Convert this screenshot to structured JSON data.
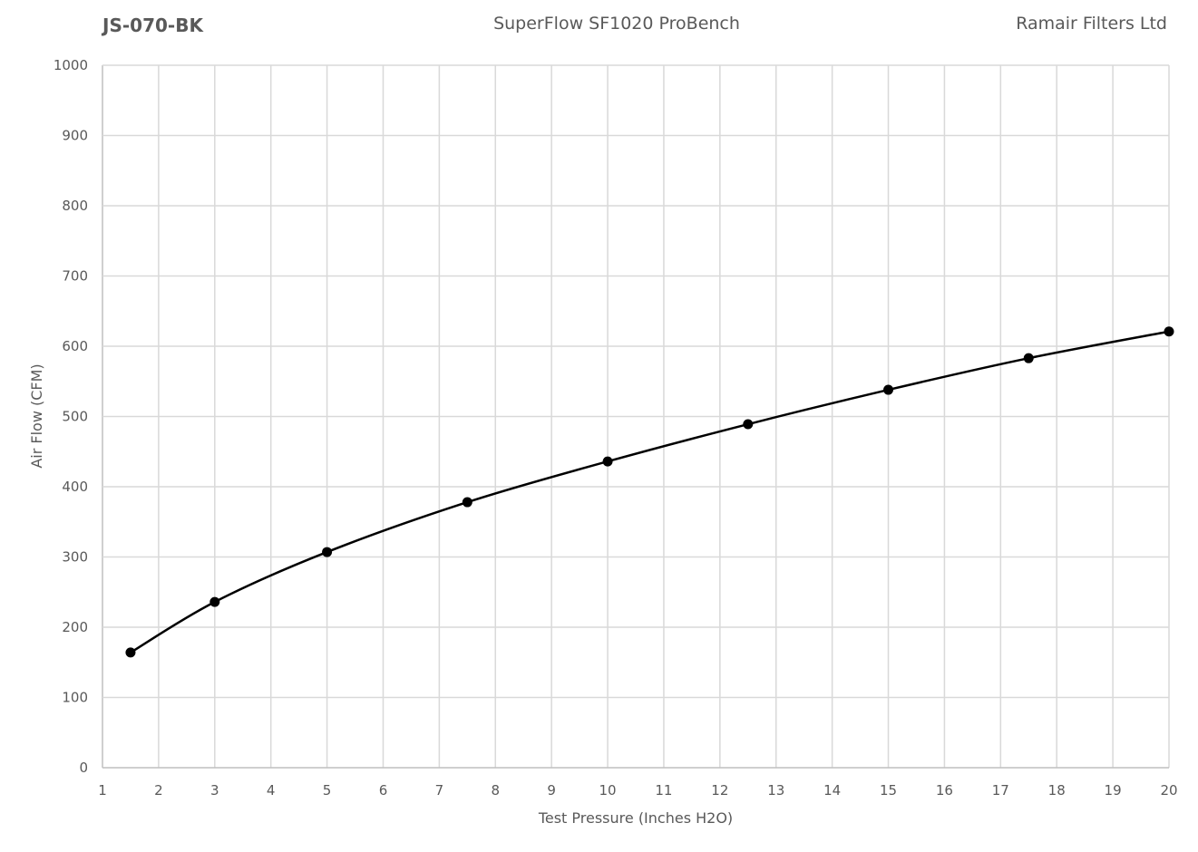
{
  "header": {
    "left": "JS-070-BK",
    "center": "SuperFlow SF1020 ProBench",
    "right": "Ramair Filters Ltd"
  },
  "chart_data": {
    "type": "line",
    "title": "SuperFlow SF1020 ProBench",
    "xlabel": "Test Pressure (Inches H2O)",
    "ylabel": "Air Flow (CFM)",
    "xlim": [
      1,
      20
    ],
    "ylim": [
      0,
      1000
    ],
    "xticks": [
      1,
      2,
      3,
      4,
      5,
      6,
      7,
      8,
      9,
      10,
      11,
      12,
      13,
      14,
      15,
      16,
      17,
      18,
      19,
      20
    ],
    "yticks": [
      0,
      100,
      200,
      300,
      400,
      500,
      600,
      700,
      800,
      900,
      1000
    ],
    "grid": true,
    "smooth": true,
    "markers": true,
    "line_color": "#000000",
    "grid_color": "#d9d9d9",
    "series": [
      {
        "x": [
          1.5,
          3,
          5,
          7.5,
          10,
          12.5,
          15,
          17.5,
          20
        ],
        "y": [
          164,
          236,
          307,
          378,
          436,
          489,
          538,
          583,
          621
        ]
      }
    ]
  }
}
